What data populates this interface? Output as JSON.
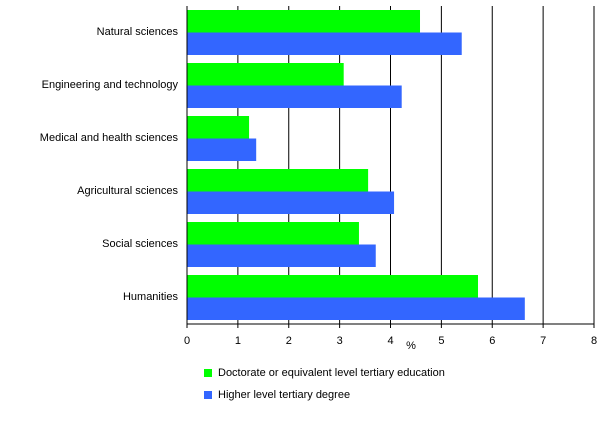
{
  "chart_data": {
    "type": "bar",
    "orientation": "horizontal",
    "categories": [
      "Natural sciences",
      "Engineering and technology",
      "Medical and health sciences",
      "Agricultural sciences",
      "Social sciences",
      "Humanities"
    ],
    "series": [
      {
        "name": "Doctorate or equivalent level tertiary education",
        "color": "#00ff00",
        "values": [
          4.58,
          3.08,
          1.22,
          3.56,
          3.38,
          5.72
        ]
      },
      {
        "name": "Higher level tertiary degree",
        "color": "#3366ff",
        "values": [
          5.4,
          4.22,
          1.36,
          4.07,
          3.71,
          6.64
        ]
      }
    ],
    "x_label": "%",
    "xlim": [
      0,
      8
    ],
    "xticks": [
      0,
      1,
      2,
      3,
      4,
      5,
      6,
      7,
      8
    ],
    "grid": true
  }
}
